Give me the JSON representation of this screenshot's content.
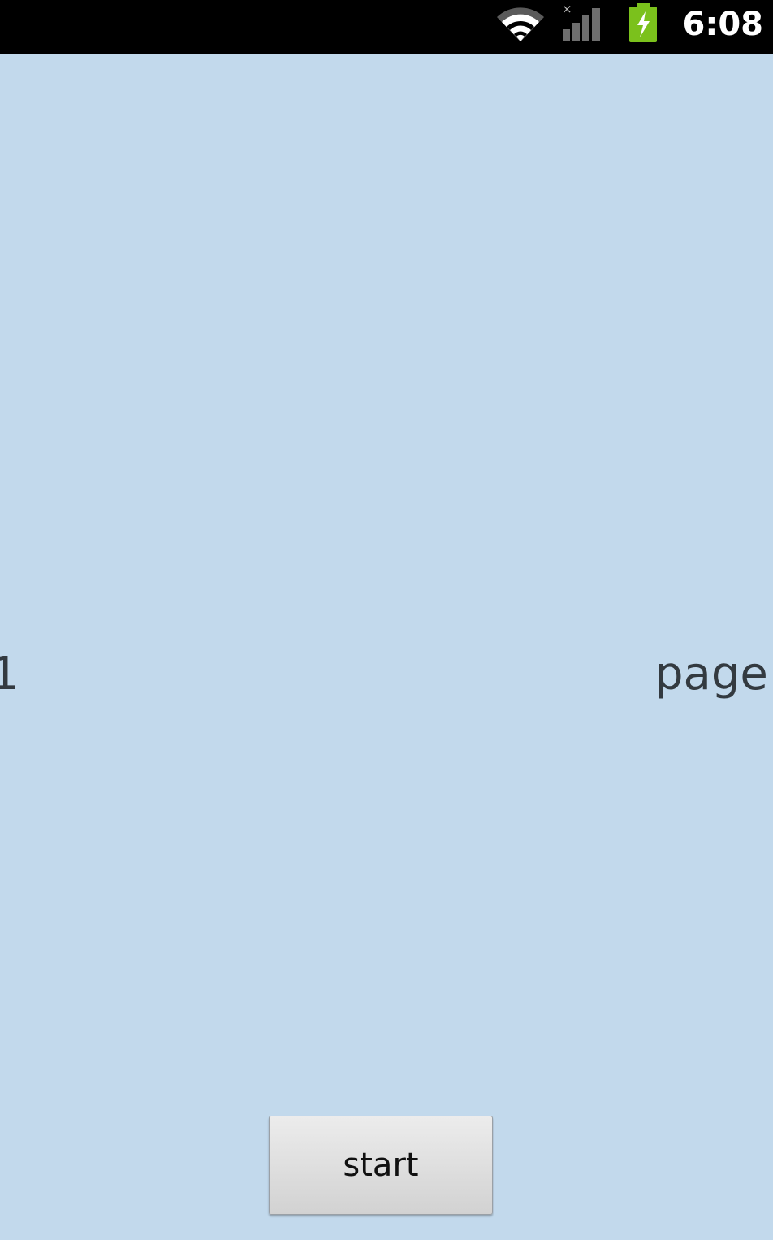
{
  "status_bar": {
    "time": "6:08",
    "icons": [
      "wifi-icon",
      "signal-icon",
      "battery-charging-icon"
    ],
    "background": "#000000"
  },
  "screen": {
    "background": "#c2d9ec",
    "left_text": "1",
    "right_text": "page"
  },
  "start_button": {
    "label": "start"
  }
}
